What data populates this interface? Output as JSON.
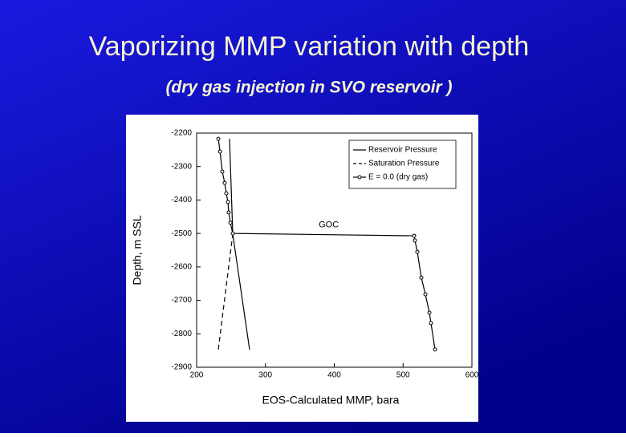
{
  "chart_data": {
    "type": "line",
    "title": "Vaporizing MMP variation with depth",
    "subtitle": "(dry gas injection in SVO reservoir )",
    "xlabel": "EOS-Calculated MMP, bara",
    "ylabel": "Depth, m SSL",
    "xlim": [
      200,
      600
    ],
    "xticks": [
      200,
      300,
      400,
      500,
      600
    ],
    "ylim": [
      -2900,
      -2200
    ],
    "yticks": [
      -2200,
      -2300,
      -2400,
      -2500,
      -2600,
      -2700,
      -2800,
      -2900
    ],
    "legend": "upper right",
    "annotations": [
      {
        "text": "GOC",
        "x": 392,
        "y": -2475
      }
    ],
    "series": [
      {
        "name": "Reservoir Pressure",
        "color": "#000000",
        "style": "solid",
        "x": [
          247.8,
          252.5,
          277
        ],
        "values": [
          -2217,
          -2502,
          -2848
        ]
      },
      {
        "name": "Saturation Pressure",
        "color": "#000000",
        "style": "dashed",
        "x": [
          231.5,
          252.5
        ],
        "values": [
          -2847,
          -2502
        ]
      },
      {
        "name": "E = 0.0 (dry gas)",
        "color": "#000000",
        "style": "solid",
        "marker": "circle",
        "x": [
          231.5,
          234,
          237.3,
          240.8,
          243.1,
          245.5,
          246.6,
          249,
          252.5,
          516,
          517.2,
          520.7,
          526.5,
          532.4,
          538.2,
          540.5,
          546.4
        ],
        "values": [
          -2217,
          -2255,
          -2315,
          -2349,
          -2380,
          -2406,
          -2437,
          -2468,
          -2500,
          -2507,
          -2521,
          -2555,
          -2632,
          -2682,
          -2737,
          -2768,
          -2847
        ]
      }
    ]
  }
}
